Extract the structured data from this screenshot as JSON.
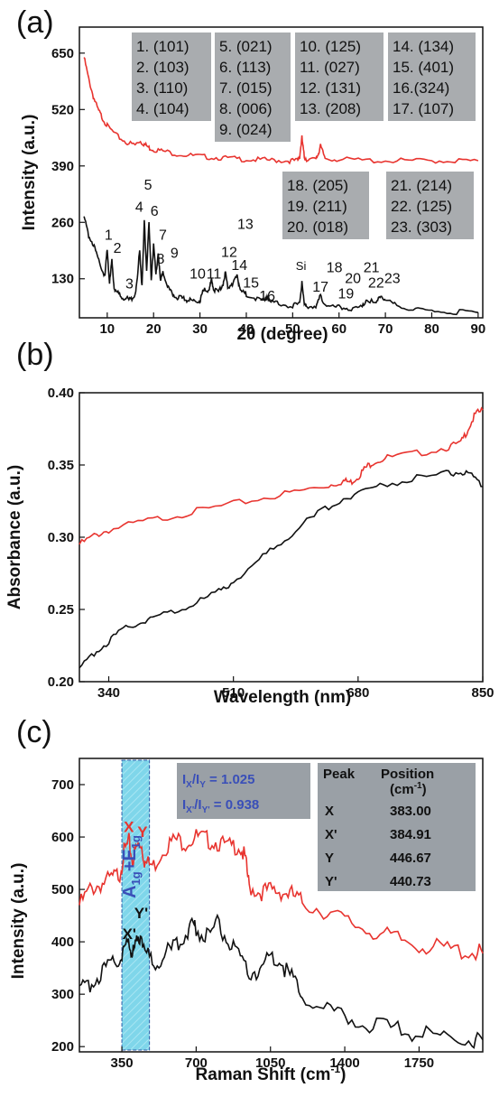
{
  "chart_data": [
    {
      "type": "line",
      "panel_label": "(a)",
      "xlabel": "2θ (degree)",
      "ylabel": "Intensity (a.u.)",
      "xlim": [
        4,
        91
      ],
      "ylim": [
        40,
        710
      ],
      "xticks": [
        10,
        20,
        30,
        40,
        50,
        60,
        70,
        80,
        90
      ],
      "yticks": [
        130,
        260,
        390,
        520,
        650
      ],
      "grid": false,
      "series": [
        {
          "color": "#e8342f",
          "x": [
            5,
            6,
            7,
            8,
            9,
            10,
            12,
            14,
            16,
            17,
            18,
            19,
            20,
            22,
            25,
            28,
            31,
            34,
            37,
            40,
            43,
            46,
            49,
            51,
            51.5,
            52,
            52.5,
            53,
            55,
            55.5,
            56,
            57,
            60,
            65,
            70,
            75,
            80,
            85,
            90
          ],
          "y": [
            640,
            590,
            550,
            520,
            500,
            482,
            460,
            445,
            438,
            448,
            440,
            432,
            428,
            424,
            418,
            414,
            411,
            409,
            407,
            405,
            404,
            403,
            402,
            402,
            412,
            455,
            410,
            406,
            404,
            418,
            435,
            408,
            405,
            403,
            402,
            402,
            402,
            402,
            402
          ]
        },
        {
          "color": "#111111",
          "x": [
            5,
            6,
            7,
            8,
            9,
            9.5,
            10,
            10.5,
            11,
            11.5,
            12,
            13,
            14,
            15,
            16,
            16.5,
            17,
            17.5,
            18,
            18.5,
            19,
            19.5,
            20,
            20.5,
            21,
            21.5,
            22,
            23,
            24,
            25,
            26,
            27,
            28,
            29,
            30,
            30.5,
            31,
            32,
            32.5,
            33,
            34,
            35,
            35.5,
            36,
            37,
            38,
            38.5,
            39,
            40,
            42,
            44,
            44.5,
            45,
            47,
            50,
            51.5,
            52,
            52.5,
            53,
            55,
            56,
            57,
            59,
            61,
            63,
            65,
            66,
            68,
            69,
            70,
            72,
            75,
            78,
            82,
            86,
            90
          ],
          "y": [
            270,
            230,
            210,
            175,
            150,
            135,
            200,
            120,
            170,
            110,
            100,
            90,
            85,
            80,
            95,
            130,
            200,
            110,
            260,
            150,
            255,
            130,
            210,
            140,
            190,
            120,
            150,
            110,
            95,
            88,
            85,
            82,
            80,
            78,
            80,
            95,
            110,
            100,
            130,
            105,
            100,
            120,
            145,
            110,
            120,
            135,
            115,
            100,
            95,
            85,
            78,
            92,
            75,
            72,
            68,
            70,
            125,
            70,
            68,
            66,
            90,
            72,
            65,
            63,
            60,
            65,
            85,
            70,
            95,
            80,
            70,
            62,
            58,
            55,
            53,
            52
          ]
        }
      ],
      "peak_labels": [
        {
          "text": "1",
          "x": 10.3,
          "y": 220
        },
        {
          "text": "2",
          "x": 12.2,
          "y": 190
        },
        {
          "text": "3",
          "x": 14.8,
          "y": 108
        },
        {
          "text": "4",
          "x": 16.9,
          "y": 285
        },
        {
          "text": "5",
          "x": 18.8,
          "y": 335
        },
        {
          "text": "6",
          "x": 20.2,
          "y": 275
        },
        {
          "text": "7",
          "x": 22.0,
          "y": 220
        },
        {
          "text": "8",
          "x": 21.5,
          "y": 165
        },
        {
          "text": "9",
          "x": 24.5,
          "y": 178
        },
        {
          "text": "10",
          "x": 29.5,
          "y": 130
        },
        {
          "text": "11",
          "x": 33.0,
          "y": 130
        },
        {
          "text": "12",
          "x": 36.3,
          "y": 180
        },
        {
          "text": "13",
          "x": 39.8,
          "y": 245
        },
        {
          "text": "14",
          "x": 38.5,
          "y": 150
        },
        {
          "text": "15",
          "x": 41.0,
          "y": 110
        },
        {
          "text": "16",
          "x": 44.5,
          "y": 80
        },
        {
          "text": "Si",
          "x": 51.8,
          "y": 150
        },
        {
          "text": "17",
          "x": 56.0,
          "y": 100
        },
        {
          "text": "18",
          "x": 59.0,
          "y": 145
        },
        {
          "text": "19",
          "x": 61.5,
          "y": 85
        },
        {
          "text": "20",
          "x": 63.0,
          "y": 120
        },
        {
          "text": "21",
          "x": 67.0,
          "y": 145
        },
        {
          "text": "22",
          "x": 68.0,
          "y": 110
        },
        {
          "text": "23",
          "x": 71.5,
          "y": 120
        }
      ],
      "annotation_boxes": [
        [
          "1. (101)",
          "2. (103)",
          "3. (110)",
          "4. (104)"
        ],
        [
          "5. (021)",
          "6. (113)",
          "7. (015)",
          "8. (006)",
          "9. (024)"
        ],
        [
          "10. (125)",
          "11. (027)",
          "12. (131)",
          "13. (208)"
        ],
        [
          "14. (134)",
          "15. (401)",
          "16.(324)",
          "17. (107)"
        ],
        [
          "18. (205)",
          "19. (211)",
          "20. (018)"
        ],
        [
          "21. (214)",
          "22. (125)",
          "23. (303)"
        ]
      ]
    },
    {
      "type": "line",
      "panel_label": "(b)",
      "xlabel": "Wavelength (nm)",
      "ylabel": "Absorbance (a.u.)",
      "xlim": [
        300,
        850
      ],
      "ylim": [
        0.2,
        0.4
      ],
      "xticks": [
        340,
        510,
        680,
        850
      ],
      "yticks": [
        0.2,
        0.25,
        0.3,
        0.35,
        0.4
      ],
      "ytick_labels": [
        "0.20",
        "0.25",
        "0.30",
        "0.35",
        "0.40"
      ],
      "grid": false,
      "series": [
        {
          "color": "#e8342f",
          "x": [
            300,
            320,
            340,
            380,
            420,
            460,
            510,
            560,
            600,
            640,
            660,
            670,
            680,
            690,
            700,
            720,
            760,
            800,
            820,
            830,
            840,
            850
          ],
          "y": [
            0.295,
            0.301,
            0.305,
            0.31,
            0.314,
            0.318,
            0.323,
            0.328,
            0.332,
            0.336,
            0.339,
            0.338,
            0.342,
            0.348,
            0.352,
            0.355,
            0.358,
            0.362,
            0.365,
            0.375,
            0.385,
            0.388
          ]
        },
        {
          "color": "#111111",
          "x": [
            300,
            320,
            340,
            360,
            380,
            400,
            430,
            460,
            490,
            510,
            540,
            570,
            600,
            630,
            660,
            690,
            720,
            760,
            800,
            820,
            835,
            850
          ],
          "y": [
            0.208,
            0.22,
            0.228,
            0.236,
            0.241,
            0.244,
            0.249,
            0.255,
            0.262,
            0.27,
            0.282,
            0.295,
            0.307,
            0.318,
            0.327,
            0.333,
            0.337,
            0.341,
            0.344,
            0.345,
            0.342,
            0.335
          ]
        }
      ]
    },
    {
      "type": "line",
      "panel_label": "(c)",
      "xlabel": "Raman Shift (cm-1)",
      "ylabel": "Intensity (a.u.)",
      "xlim": [
        150,
        2050
      ],
      "ylim": [
        190,
        750
      ],
      "xticks": [
        350,
        700,
        1050,
        1400,
        1750
      ],
      "yticks": [
        200,
        300,
        400,
        500,
        600,
        700
      ],
      "grid": false,
      "series": [
        {
          "color": "#e8342f",
          "x": [
            150,
            200,
            250,
            300,
            340,
            360,
            383,
            400,
            420,
            440,
            460,
            500,
            550,
            600,
            650,
            700,
            750,
            800,
            850,
            900,
            930,
            950,
            1000,
            1050,
            1100,
            1150,
            1200,
            1300,
            1400,
            1500,
            1600,
            1700,
            1800,
            1900,
            2000,
            2050
          ],
          "y": [
            470,
            500,
            510,
            520,
            530,
            570,
            590,
            555,
            580,
            590,
            550,
            545,
            580,
            595,
            590,
            600,
            595,
            590,
            580,
            585,
            560,
            505,
            495,
            498,
            496,
            490,
            475,
            460,
            440,
            425,
            410,
            400,
            390,
            385,
            380,
            378
          ]
        },
        {
          "color": "#111111",
          "x": [
            150,
            200,
            250,
            300,
            340,
            360,
            385,
            400,
            420,
            441,
            460,
            500,
            550,
            600,
            650,
            680,
            700,
            750,
            800,
            850,
            900,
            950,
            1000,
            1050,
            1100,
            1150,
            1200,
            1300,
            1400,
            1500,
            1600,
            1700,
            1800,
            1900,
            2000,
            2050
          ],
          "y": [
            305,
            320,
            340,
            355,
            370,
            385,
            400,
            378,
            395,
            420,
            380,
            360,
            375,
            390,
            415,
            440,
            425,
            410,
            435,
            400,
            370,
            340,
            345,
            375,
            360,
            330,
            300,
            270,
            255,
            245,
            235,
            228,
            222,
            218,
            215,
            213
          ]
        }
      ],
      "band_range": [
        350,
        480
      ],
      "band_label_main": "A",
      "band_label_sub1": "1g",
      "band_label_plus": "+E",
      "band_label_sub2": "1g",
      "point_labels": [
        {
          "text": "X",
          "color": "#e8342f",
          "x": 383,
          "y": 610
        },
        {
          "text": "Y",
          "color": "#e8342f",
          "x": 447,
          "y": 600
        },
        {
          "text": "X'",
          "color": "#111111",
          "x": 385,
          "y": 405
        },
        {
          "text": "Y'",
          "color": "#111111",
          "x": 441,
          "y": 445
        }
      ],
      "ratios": [
        {
          "a": "I",
          "a_sub": "X",
          "b": "/I",
          "b_sub": "Y",
          "value": " = 1.025"
        },
        {
          "a": "I",
          "a_sub": "X'",
          "b": "/I",
          "b_sub": "Y'",
          "value": " = 0.938"
        }
      ],
      "position_table": {
        "header_col1": "Peak",
        "header_col2": "Position",
        "header_col2_unit": "(cm",
        "header_col2_sup": "-1",
        "header_col2_close": ")",
        "rows": [
          {
            "peak": "X",
            "position": "383.00"
          },
          {
            "peak": "X'",
            "position": "384.91"
          },
          {
            "peak": "Y",
            "position": "446.67"
          },
          {
            "peak": "Y'",
            "position": "440.73"
          }
        ]
      },
      "xlabel_main": "Raman Shift (cm",
      "xlabel_sup": "-1",
      "xlabel_close": ")"
    }
  ],
  "panel_b_xlabel": "Wavelength (nm)",
  "panel_a_xlabel_theta": "2θ (degree)"
}
